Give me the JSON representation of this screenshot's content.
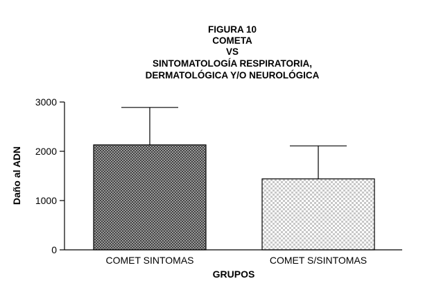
{
  "chart_data": {
    "type": "bar",
    "title_lines": [
      "FIGURA 10",
      "COMETA",
      "VS",
      "SINTOMATOLOGÍA RESPIRATORIA,",
      "DERMATOLÓGICA Y/O NEUROLÓGICA"
    ],
    "xlabel": "GRUPOS",
    "ylabel": "Daño al ADN",
    "categories": [
      "COMET SINTOMAS",
      "COMET S/SINTOMAS"
    ],
    "values": [
      2130,
      1440
    ],
    "error_upper": [
      2890,
      2110
    ],
    "ylim": [
      0,
      3000
    ],
    "yticks": [
      0,
      1000,
      2000,
      3000
    ],
    "bar_patterns": [
      "dense-checker",
      "light-checker"
    ],
    "grid": false,
    "legend": "none"
  }
}
